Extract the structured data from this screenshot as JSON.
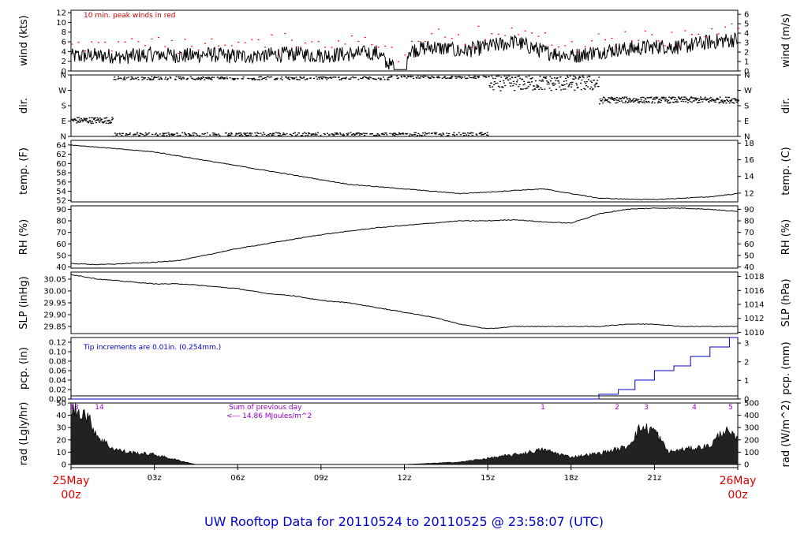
{
  "title": "UW Rooftop Data for 20110524  to  20110525 @ 23:58:07  (UTC)",
  "x_axis": {
    "ticks": [
      "00z",
      "03z",
      "06z",
      "09z",
      "12z",
      "15z",
      "18z",
      "21z",
      "00z"
    ],
    "start_label": [
      "25May",
      "00z"
    ],
    "end_label": [
      "26May",
      "00z"
    ]
  },
  "panels": {
    "wind": {
      "ylabel_left": "wind (kts)",
      "ylabel_right": "wind (m/s)",
      "left_ticks": [
        "0",
        "2",
        "4",
        "6",
        "8",
        "10",
        "12"
      ],
      "left_range": [
        0,
        12.5
      ],
      "right_ticks": [
        "0",
        "1",
        "2",
        "3",
        "4",
        "5",
        "6"
      ],
      "annotation": "10 min. peak winds in red",
      "color_series": "#000000",
      "color_peaks": "#ff0000"
    },
    "dir": {
      "ylabel_left": "dir.",
      "ylabel_right": "dir.",
      "left_ticks": [
        "N",
        "E",
        "S",
        "W",
        "N"
      ],
      "right_ticks": [
        "N",
        "E",
        "S",
        "W",
        "N"
      ]
    },
    "temp": {
      "ylabel_left": "temp. (F)",
      "ylabel_right": "temp. (C)",
      "left_ticks": [
        "52",
        "54",
        "56",
        "58",
        "60",
        "62",
        "64"
      ],
      "left_range": [
        51.7,
        65
      ],
      "right_ticks": [
        "12",
        "14",
        "16",
        "18"
      ]
    },
    "rh": {
      "ylabel_left": "RH (%)",
      "ylabel_right": "RH (%)",
      "left_ticks": [
        "40",
        "50",
        "60",
        "70",
        "80",
        "90"
      ],
      "left_range": [
        39,
        93
      ],
      "right_ticks": [
        "40",
        "50",
        "60",
        "70",
        "80",
        "90"
      ]
    },
    "slp": {
      "ylabel_left": "SLP (inHg)",
      "ylabel_right": "SLP (hPa)",
      "left_ticks": [
        "29.85",
        "29.90",
        "29.95",
        "30.00",
        "30.05"
      ],
      "left_range": [
        29.82,
        30.08
      ],
      "right_ticks": [
        "1010",
        "1012",
        "1014",
        "1016",
        "1018"
      ]
    },
    "pcp": {
      "ylabel_left": "pcp. (in)",
      "ylabel_right": "pcp. (mm)",
      "left_ticks": [
        "0.00",
        "0.02",
        "0.04",
        "0.06",
        "0.08",
        "0.10",
        "0.12"
      ],
      "left_range": [
        0,
        0.13
      ],
      "right_ticks": [
        "0",
        "1",
        "2",
        "3"
      ],
      "annotation": "Tip increments are 0.01in. (0.254mm.)",
      "color_series": "#0000cc"
    },
    "rad": {
      "ylabel_left": "rad (Lgly/hr)",
      "ylabel_right": "rad (W/m^2)",
      "left_ticks": [
        "0",
        "10",
        "20",
        "30",
        "40",
        "50"
      ],
      "left_range": [
        0,
        50
      ],
      "right_ticks": [
        "0",
        "100",
        "200",
        "300",
        "400",
        "500"
      ],
      "annotation_line1": "Sum of previous day",
      "annotation_line2": "<--- 14.86 MJoules/m^2",
      "hour_marks": [
        "13",
        "14",
        "1",
        "2",
        "3",
        "4",
        "5"
      ]
    }
  },
  "chart_data": [
    {
      "type": "line",
      "title": "",
      "ylabel": "wind (kts)",
      "xlabel": "",
      "x": [
        0,
        1,
        2,
        3,
        4,
        5,
        6,
        7,
        8,
        9,
        10,
        11,
        11.5,
        12,
        13,
        14,
        15,
        16,
        17,
        18,
        19,
        20,
        21,
        22,
        23,
        24
      ],
      "series": [
        {
          "name": "",
          "values": [
            3,
            3.2,
            3,
            3.5,
            3.1,
            3.4,
            3,
            3.3,
            3.5,
            3.2,
            3.5,
            3.8,
            1,
            4,
            5,
            4,
            5,
            6,
            4,
            3,
            4,
            4.5,
            5,
            5,
            6,
            6.5
          ]
        }
      ],
      "ylim": [
        0,
        12.5
      ]
    },
    {
      "type": "scatter",
      "title": "",
      "ylabel": "dir.",
      "xlabel": "",
      "x": [
        0.5,
        1,
        2,
        3,
        4,
        5,
        6,
        7,
        8,
        9,
        10,
        11,
        12,
        13,
        14,
        15,
        16,
        17,
        18,
        19,
        20,
        21,
        22,
        23,
        24
      ],
      "series": [
        {
          "name": "",
          "values": [
            "E",
            "E",
            "N",
            "N",
            "N",
            "N",
            "N",
            "N",
            "N",
            "N",
            "N",
            "N",
            "N",
            "N",
            "S",
            "W",
            "W",
            "N",
            "W",
            "S",
            "S",
            "S",
            "S",
            "S",
            "S"
          ]
        }
      ]
    },
    {
      "type": "line",
      "title": "",
      "ylabel": "temp. (F)",
      "xlabel": "",
      "x": [
        0,
        1,
        2,
        3,
        4,
        5,
        6,
        7,
        8,
        9,
        10,
        11,
        12,
        13,
        14,
        15,
        16,
        17,
        18,
        19,
        20,
        21,
        22,
        23,
        24
      ],
      "series": [
        {
          "name": "",
          "values": [
            64,
            63.5,
            63,
            62.5,
            61.5,
            60.5,
            59.5,
            58.5,
            57.5,
            56.5,
            55.5,
            55,
            54.5,
            54,
            53.5,
            53.8,
            54.2,
            54.5,
            53.5,
            52.5,
            52.3,
            52.2,
            52.5,
            52.8,
            53.5
          ]
        }
      ],
      "ylim": [
        51.7,
        65
      ]
    },
    {
      "type": "line",
      "title": "",
      "ylabel": "RH (%)",
      "xlabel": "",
      "x": [
        0,
        1,
        2,
        3,
        4,
        5,
        6,
        7,
        8,
        9,
        10,
        11,
        12,
        13,
        14,
        15,
        16,
        17,
        18,
        19,
        20,
        21,
        22,
        23,
        24
      ],
      "series": [
        {
          "name": "",
          "values": [
            43,
            42,
            43,
            44,
            46,
            51,
            56,
            60,
            64,
            68,
            71,
            74,
            76,
            78,
            80,
            80,
            81,
            79,
            78,
            86,
            90,
            91,
            91,
            90,
            88
          ]
        }
      ],
      "ylim": [
        39,
        93
      ]
    },
    {
      "type": "line",
      "title": "",
      "ylabel": "SLP (inHg)",
      "xlabel": "",
      "x": [
        0,
        1,
        2,
        3,
        4,
        5,
        6,
        7,
        8,
        9,
        10,
        11,
        12,
        13,
        14,
        15,
        16,
        17,
        18,
        19,
        20,
        21,
        22,
        23,
        24
      ],
      "series": [
        {
          "name": "",
          "values": [
            30.07,
            30.05,
            30.04,
            30.03,
            30.03,
            30.02,
            30.01,
            29.99,
            29.98,
            29.96,
            29.95,
            29.93,
            29.91,
            29.89,
            29.86,
            29.84,
            29.85,
            29.85,
            29.85,
            29.85,
            29.86,
            29.86,
            29.85,
            29.85,
            29.85
          ]
        }
      ],
      "ylim": [
        29.82,
        30.08
      ]
    },
    {
      "type": "line",
      "title": "",
      "ylabel": "pcp. (in)",
      "xlabel": "",
      "x": [
        0,
        18.7,
        19,
        19.7,
        20.3,
        21,
        21.7,
        22.3,
        23,
        23.7,
        24
      ],
      "series": [
        {
          "name": "",
          "values": [
            0,
            0,
            0.01,
            0.02,
            0.04,
            0.06,
            0.07,
            0.09,
            0.11,
            0.13,
            0.13
          ]
        }
      ],
      "ylim": [
        0,
        0.13
      ]
    },
    {
      "type": "area",
      "title": "",
      "ylabel": "rad (Lgly/hr)",
      "xlabel": "",
      "x": [
        0,
        0.5,
        1,
        1.5,
        2,
        3,
        4.5,
        12,
        14,
        15,
        16,
        17,
        18,
        19,
        20,
        20.5,
        21,
        21.5,
        22,
        23,
        23.5,
        24
      ],
      "series": [
        {
          "name": "",
          "values": [
            45,
            42,
            22,
            13,
            10,
            8,
            0,
            0,
            2,
            5,
            8,
            12,
            6,
            9,
            14,
            30,
            28,
            10,
            12,
            15,
            28,
            20
          ]
        }
      ],
      "ylim": [
        0,
        50
      ]
    }
  ]
}
